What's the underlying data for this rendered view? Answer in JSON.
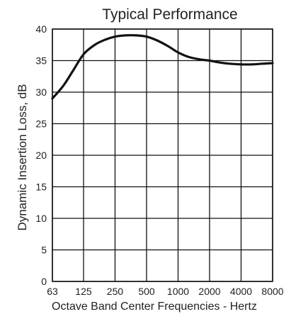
{
  "chart_data": {
    "type": "line",
    "title": "Typical Performance",
    "xlabel": "Octave Band Center Frequencies - Hertz",
    "ylabel": "Dynamic Insertion Loss, dB",
    "categories": [
      "63",
      "125",
      "250",
      "500",
      "1000",
      "2000",
      "4000",
      "8000"
    ],
    "x_scale": "log2 (octave bands)",
    "ylim": [
      0,
      40
    ],
    "yticks": [
      0,
      5,
      10,
      15,
      20,
      25,
      30,
      35,
      40
    ],
    "grid": true,
    "legend": "none",
    "series": [
      {
        "points": [
          [
            63,
            29
          ],
          [
            80,
            31
          ],
          [
            100,
            33.5
          ],
          [
            125,
            36
          ],
          [
            160,
            37.5
          ],
          [
            200,
            38.3
          ],
          [
            250,
            38.8
          ],
          [
            315,
            39
          ],
          [
            400,
            39
          ],
          [
            500,
            38.8
          ],
          [
            630,
            38.2
          ],
          [
            800,
            37.3
          ],
          [
            1000,
            36.3
          ],
          [
            1250,
            35.6
          ],
          [
            1600,
            35.2
          ],
          [
            2000,
            35
          ],
          [
            2500,
            34.7
          ],
          [
            3150,
            34.5
          ],
          [
            4000,
            34.4
          ],
          [
            5000,
            34.4
          ],
          [
            6300,
            34.5
          ],
          [
            8000,
            34.6
          ]
        ]
      }
    ],
    "colors": {
      "line": "#111111",
      "grid": "#111111",
      "text": "#222222"
    }
  }
}
